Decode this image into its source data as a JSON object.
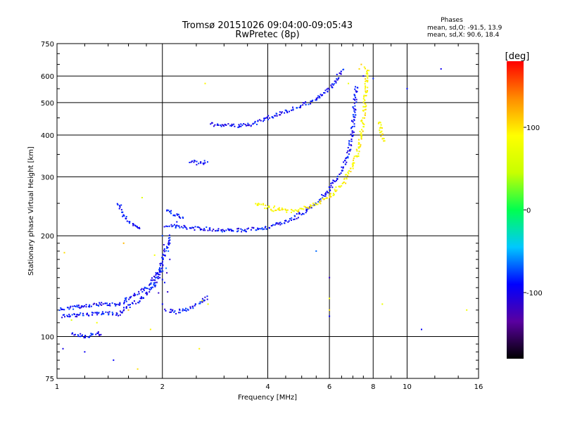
{
  "chart_data": {
    "type": "scatter",
    "title": "Tromsø 20151026 09:04:00-09:05:43",
    "subtitle": "RwPretec (8p)",
    "xlabel": "Frequency [MHz]",
    "ylabel": "Stationary phase Virtual Height [km]",
    "x_scale": "log",
    "y_scale": "log",
    "xlim": [
      1,
      16
    ],
    "ylim": [
      75,
      750
    ],
    "x_ticks": [
      1,
      2,
      4,
      6,
      8,
      10,
      16
    ],
    "x_tick_labels": [
      "1",
      "2",
      "4",
      "6",
      "8",
      "10",
      "16"
    ],
    "y_ticks": [
      75,
      100,
      200,
      300,
      400,
      500,
      600,
      750
    ],
    "y_tick_labels": [
      "75",
      "100",
      "200",
      "300",
      "400",
      "500",
      "600",
      "750"
    ],
    "grid": true,
    "phase_stats": {
      "heading": "Phases",
      "line_o": "mean, sd,O: -91.5, 13.9",
      "line_x": "mean, sd,X:  90.6, 18.4"
    },
    "colorbar": {
      "label": "[deg]",
      "range": [
        -180,
        180
      ],
      "ticks": [
        100,
        0,
        -100
      ],
      "tick_labels": [
        "100",
        "0",
        "-100"
      ],
      "colors": [
        "#000000",
        "#5a00a0",
        "#0000ff",
        "#00c8ff",
        "#00ff50",
        "#c8ff00",
        "#ffff00",
        "#ff8c00",
        "#ff0000"
      ]
    },
    "series": [
      {
        "name": "O",
        "mean_phase": -91.5,
        "traces": [
          [
            [
              2.05,
              215
            ],
            [
              2.3,
              212
            ],
            [
              2.6,
              210
            ],
            [
              3.0,
              208
            ],
            [
              3.5,
              208
            ],
            [
              4.0,
              212
            ],
            [
              4.5,
              220
            ],
            [
              5.0,
              233
            ],
            [
              5.5,
              250
            ],
            [
              6.0,
              275
            ],
            [
              6.5,
              315
            ],
            [
              6.8,
              350
            ],
            [
              7.0,
              420
            ],
            [
              7.1,
              500
            ],
            [
              7.2,
              560
            ]
          ],
          [
            [
              2.75,
              430
            ],
            [
              2.9,
              430
            ],
            [
              3.3,
              425
            ],
            [
              3.6,
              430
            ],
            [
              4.0,
              450
            ],
            [
              4.5,
              470
            ],
            [
              5.0,
              490
            ],
            [
              5.5,
              510
            ],
            [
              6.0,
              550
            ],
            [
              6.3,
              590
            ],
            [
              6.5,
              620
            ],
            [
              6.6,
              630
            ]
          ],
          [
            [
              1.03,
              115
            ],
            [
              1.15,
              116
            ],
            [
              1.3,
              117
            ],
            [
              1.4,
              118
            ],
            [
              1.5,
              116
            ],
            [
              1.6,
              123
            ],
            [
              1.75,
              130
            ],
            [
              1.85,
              138
            ],
            [
              1.95,
              150
            ],
            [
              2.0,
              170
            ],
            [
              2.05,
              185
            ],
            [
              2.1,
              200
            ]
          ],
          [
            [
              1.02,
              120
            ],
            [
              1.1,
              122
            ],
            [
              1.25,
              124
            ],
            [
              1.35,
              125
            ],
            [
              1.5,
              125
            ],
            [
              1.6,
              130
            ],
            [
              1.8,
              140
            ],
            [
              1.9,
              150
            ],
            [
              2.0,
              160
            ]
          ],
          [
            [
              2.05,
              120
            ],
            [
              2.2,
              118
            ],
            [
              2.4,
              122
            ],
            [
              2.6,
              127
            ],
            [
              2.7,
              132
            ]
          ],
          [
            [
              1.5,
              250
            ],
            [
              1.55,
              230
            ],
            [
              1.62,
              218
            ],
            [
              1.7,
              212
            ],
            [
              1.75,
              212
            ]
          ],
          [
            [
              2.4,
              335
            ],
            [
              2.5,
              330
            ],
            [
              2.6,
              330
            ],
            [
              2.7,
              335
            ]
          ],
          [
            [
              2.05,
              240
            ],
            [
              2.15,
              232
            ],
            [
              2.3,
              228
            ]
          ],
          [
            [
              1.1,
              102
            ],
            [
              1.2,
              100
            ],
            [
              1.3,
              102
            ],
            [
              1.35,
              101
            ]
          ]
        ],
        "points": [
          [
            2.0,
            148
          ],
          [
            2.02,
            175
          ],
          [
            2.05,
            160
          ],
          [
            2.03,
            145
          ],
          [
            2.1,
            190
          ],
          [
            2.07,
            136
          ],
          [
            2.0,
            125
          ],
          [
            2.1,
            170
          ],
          [
            2.0,
            200
          ],
          [
            2.02,
            188
          ],
          [
            1.9,
            142
          ],
          [
            1.95,
            135
          ],
          [
            2.06,
            155
          ],
          [
            2.08,
            180
          ],
          [
            1.97,
            165
          ],
          [
            2.2,
            220
          ],
          [
            2.15,
            230
          ],
          [
            2.25,
            226
          ],
          [
            1.45,
            85
          ],
          [
            1.2,
            90
          ],
          [
            1.04,
            92
          ],
          [
            6.0,
            150
          ],
          [
            6.0,
            115
          ],
          [
            5.5,
            180
          ],
          [
            11.0,
            105
          ],
          [
            7.5,
            600
          ],
          [
            8.0,
            590
          ],
          [
            10.0,
            550
          ],
          [
            12.5,
            630
          ]
        ]
      },
      {
        "name": "X",
        "mean_phase": 90.6,
        "traces": [
          [
            [
              4.2,
              243
            ],
            [
              4.5,
              238
            ],
            [
              4.8,
              236
            ],
            [
              5.0,
              240
            ],
            [
              5.3,
              245
            ],
            [
              5.6,
              252
            ],
            [
              6.0,
              262
            ],
            [
              6.3,
              275
            ],
            [
              6.6,
              290
            ],
            [
              6.9,
              315
            ],
            [
              7.2,
              350
            ],
            [
              7.4,
              400
            ],
            [
              7.5,
              450
            ],
            [
              7.6,
              520
            ],
            [
              7.65,
              580
            ],
            [
              7.7,
              620
            ],
            [
              7.6,
              640
            ]
          ],
          [
            [
              3.7,
              250
            ],
            [
              3.9,
              245
            ],
            [
              4.1,
              240
            ],
            [
              4.3,
              238
            ]
          ],
          [
            [
              8.3,
              440
            ],
            [
              8.4,
              420
            ],
            [
              8.5,
              400
            ],
            [
              8.6,
              380
            ]
          ]
        ],
        "points": [
          [
            1.6,
            120
          ],
          [
            1.3,
            110
          ],
          [
            1.1,
            112
          ],
          [
            2.6,
            128
          ],
          [
            2.7,
            125
          ],
          [
            2.55,
            92
          ],
          [
            1.75,
            260
          ],
          [
            1.9,
            175
          ],
          [
            6.0,
            130
          ],
          [
            6.0,
            120
          ],
          [
            6.8,
            570
          ],
          [
            7.4,
            650
          ],
          [
            7.3,
            630
          ],
          [
            2.65,
            570
          ],
          [
            1.85,
            105
          ],
          [
            8.5,
            125
          ],
          [
            14.8,
            120
          ],
          [
            1.7,
            80
          ],
          [
            1.55,
            190
          ],
          [
            1.05,
            178
          ]
        ]
      }
    ]
  }
}
